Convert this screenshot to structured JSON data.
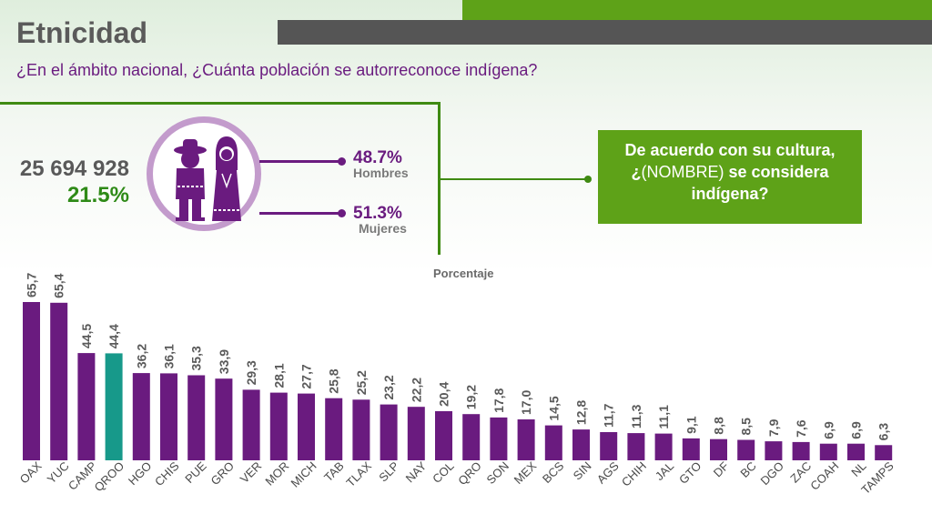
{
  "title": "Etnicidad",
  "subtitle": "¿En el ámbito nacional, ¿Cuánta población se autorreconoce indígena?",
  "summary": {
    "total": "25 694 928",
    "percent": "21.5%"
  },
  "gender": {
    "men_value": "48.7%",
    "men_label": "Hombres",
    "women_value": "51.3%",
    "women_label": "Mujeres"
  },
  "question": {
    "part1": "De acuerdo con su cultura,",
    "part2_prefix": "¿",
    "part2_normal": "(NOMBRE)",
    "part2_suffix": " se considera",
    "part3": "indígena?"
  },
  "icons": [
    "indigenous-man-icon",
    "indigenous-woman-icon"
  ],
  "colors": {
    "bar": "#6a1b7f",
    "highlight": "#17998a",
    "accent_green": "#5ea218",
    "frame_green": "#3f8a12"
  },
  "chart_data": {
    "type": "bar",
    "ylabel": "Porcentaje",
    "categories": [
      "OAX",
      "YUC",
      "CAMP",
      "QROO",
      "HGO",
      "CHIS",
      "PUE",
      "GRO",
      "VER",
      "MOR",
      "MICH",
      "TAB",
      "TLAX",
      "SLP",
      "NAY",
      "COL",
      "QRO",
      "SON",
      "MEX",
      "BCS",
      "SIN",
      "AGS",
      "CHIH",
      "JAL",
      "GTO",
      "DF",
      "BC",
      "DGO",
      "ZAC",
      "COAH",
      "NL",
      "TAMPS"
    ],
    "values": [
      65.7,
      65.4,
      44.5,
      44.4,
      36.2,
      36.1,
      35.3,
      33.9,
      29.3,
      28.1,
      27.7,
      25.8,
      25.2,
      23.2,
      22.2,
      20.4,
      19.2,
      17.8,
      17.0,
      14.5,
      12.8,
      11.7,
      11.3,
      11.1,
      9.1,
      8.8,
      8.5,
      7.9,
      7.6,
      6.9,
      6.9,
      6.3
    ],
    "labels": [
      "65,7",
      "65,4",
      "44,5",
      "44,4",
      "36,2",
      "36,1",
      "35,3",
      "33,9",
      "29,3",
      "28,1",
      "27,7",
      "25,8",
      "25,2",
      "23,2",
      "22,2",
      "20,4",
      "19,2",
      "17,8",
      "17,0",
      "14,5",
      "12,8",
      "11,7",
      "11,3",
      "11,1",
      "9,1",
      "8,8",
      "8,5",
      "7,9",
      "7,6",
      "6,9",
      "6,9",
      "6,3"
    ],
    "highlight_category": "QROO"
  }
}
